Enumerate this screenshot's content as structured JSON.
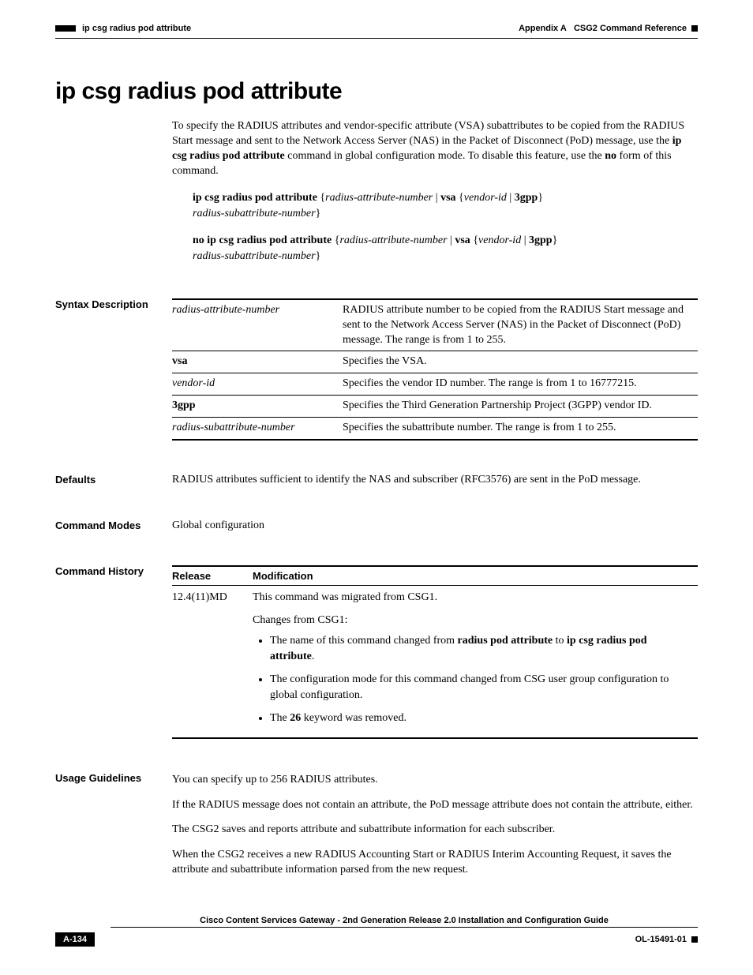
{
  "header": {
    "left": "ip csg radius pod attribute",
    "right_prefix": "Appendix A",
    "right_title": "CSG2 Command Reference"
  },
  "title": "ip csg radius pod attribute",
  "intro": {
    "p1_a": "To specify the RADIUS attributes and vendor-specific attribute (VSA) subattributes to be copied from the RADIUS Start message and sent to the Network Access Server (NAS) in the Packet of Disconnect (PoD) message, use the ",
    "p1_b": "ip csg radius pod attribute",
    "p1_c": " command in global configuration mode. To disable this feature, use the ",
    "p1_d": "no",
    "p1_e": " form of this command."
  },
  "syntax": {
    "cmd1_bold": "ip csg radius pod attribute",
    "cmd2_bold": "no ip csg radius pod attribute",
    "arg_radius_attr": "radius-attribute-number",
    "kw_vsa": "vsa",
    "arg_vendor_id": "vendor-id",
    "kw_3gpp": "3gpp",
    "arg_sub": "radius-subattribute-number"
  },
  "sections": {
    "syntax_desc_label": "Syntax Description",
    "defaults_label": "Defaults",
    "modes_label": "Command Modes",
    "history_label": "Command History",
    "usage_label": "Usage Guidelines"
  },
  "syntax_table": {
    "rows": [
      {
        "param": "radius-attribute-number",
        "param_style": "i",
        "desc": "RADIUS attribute number to be copied from the RADIUS Start message and sent to the Network Access Server (NAS) in the Packet of Disconnect (PoD) message. The range is from 1 to 255."
      },
      {
        "param": "vsa",
        "param_style": "b",
        "desc": "Specifies the VSA."
      },
      {
        "param": "vendor-id",
        "param_style": "i",
        "desc": "Specifies the vendor ID number. The range is from 1 to 16777215."
      },
      {
        "param": "3gpp",
        "param_style": "b",
        "desc": "Specifies the Third Generation Partnership Project (3GPP) vendor ID."
      },
      {
        "param": "radius-subattribute-number",
        "param_style": "i",
        "desc": "Specifies the subattribute number. The range is from 1 to 255."
      }
    ]
  },
  "defaults_text": "RADIUS attributes sufficient to identify the NAS and subscriber (RFC3576) are sent in the PoD message.",
  "modes_text": "Global configuration",
  "history": {
    "col_release": "Release",
    "col_mod": "Modification",
    "release": "12.4(11)MD",
    "line1": "This command was migrated from CSG1.",
    "line2": "Changes from CSG1:",
    "b1_a": "The name of this command changed from ",
    "b1_b": "radius pod attribute",
    "b1_c": " to ",
    "b1_d": "ip csg radius pod attribute",
    "b1_e": ".",
    "b2": "The configuration mode for this command changed from CSG user group configuration to global configuration.",
    "b3_a": "The ",
    "b3_b": "26",
    "b3_c": " keyword was removed."
  },
  "usage": {
    "p1": "You can specify up to 256 RADIUS attributes.",
    "p2": "If the RADIUS message does not contain an attribute, the PoD message attribute does not contain the attribute, either.",
    "p3": "The CSG2 saves and reports attribute and subattribute information for each subscriber.",
    "p4": "When the CSG2 receives a new RADIUS Accounting Start or RADIUS Interim Accounting Request, it saves the attribute and subattribute information parsed from the new request."
  },
  "footer": {
    "guide": "Cisco Content Services Gateway - 2nd Generation Release 2.0 Installation and Configuration Guide",
    "page": "A-134",
    "doc_id": "OL-15491-01"
  }
}
